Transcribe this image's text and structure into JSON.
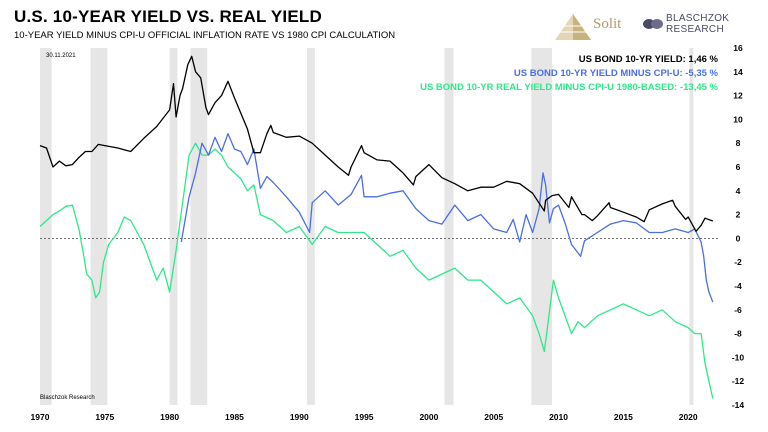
{
  "header": {
    "title": "U.S. 10-YEAR YIELD VS. REAL YIELD",
    "subtitle": "10-YEAR YIELD MINUS CPI-U OFFICIAL INFLATION RATE VS 1980 CPI CALCULATION"
  },
  "brand": {
    "solit": "Solit",
    "line1": "BLASCHZOK",
    "line2": "RESEARCH"
  },
  "chart_data": {
    "type": "line",
    "date_label": "30.11.2021",
    "source": "Blaschzok Research",
    "xlim": [
      1970,
      2022.3
    ],
    "ylim": [
      -14,
      16
    ],
    "x_ticks": [
      "1970",
      "1975",
      "1980",
      "1985",
      "1990",
      "1995",
      "2000",
      "2005",
      "2010",
      "2015",
      "2020"
    ],
    "y_ticks": [
      "16",
      "14",
      "12",
      "10",
      "8",
      "6",
      "4",
      "2",
      "0",
      "-2",
      "-4",
      "-6",
      "-8",
      "-10",
      "-12",
      "-14"
    ],
    "recessions": [
      [
        1970.0,
        1970.9
      ],
      [
        1973.9,
        1975.2
      ],
      [
        1980.0,
        1980.6
      ],
      [
        1981.6,
        1982.9
      ],
      [
        1990.6,
        1991.2
      ],
      [
        2001.2,
        2001.9
      ],
      [
        2007.9,
        2009.5
      ],
      [
        2020.1,
        2020.4
      ]
    ],
    "series": [
      {
        "name": "US BOND 10-YR YIELD",
        "legend": "US BOND 10-YR YIELD: 1,46 %",
        "color": "#000000",
        "x": [
          1970,
          1970.5,
          1971,
          1971.5,
          1972,
          1972.5,
          1973,
          1973.5,
          1974,
          1974.5,
          1975,
          1976,
          1977,
          1978,
          1979,
          1980,
          1980.3,
          1980.5,
          1980.8,
          1981,
          1981.4,
          1981.7,
          1982,
          1982.4,
          1982.8,
          1983,
          1983.5,
          1984,
          1984.5,
          1985,
          1985.5,
          1986,
          1986.5,
          1987,
          1987.5,
          1987.8,
          1988,
          1989,
          1990,
          1991,
          1992,
          1993,
          1993.8,
          1994,
          1994.8,
          1995,
          1996,
          1997,
          1998,
          1998.8,
          1999,
          2000,
          2001,
          2002,
          2003,
          2004,
          2005,
          2006,
          2007,
          2008,
          2008.9,
          2009,
          2009.5,
          2010,
          2010.8,
          2011,
          2011.8,
          2012,
          2012.6,
          2013,
          2013.9,
          2014,
          2015,
          2016,
          2016.6,
          2017,
          2018,
          2018.8,
          2019,
          2019.8,
          2020,
          2020.6,
          2021,
          2021.3,
          2021.9
        ],
        "y": [
          7.8,
          7.6,
          6.0,
          6.5,
          6.1,
          6.2,
          6.8,
          7.3,
          7.3,
          7.9,
          7.8,
          7.6,
          7.3,
          8.4,
          9.4,
          10.8,
          13.0,
          10.2,
          12.0,
          12.6,
          14.6,
          15.3,
          14.0,
          13.5,
          11.0,
          10.4,
          11.4,
          12.0,
          13.2,
          11.8,
          10.5,
          9.2,
          7.2,
          7.2,
          8.8,
          9.5,
          8.9,
          8.5,
          8.6,
          8.0,
          7.0,
          6.0,
          5.3,
          6.0,
          7.8,
          7.2,
          6.6,
          6.5,
          5.5,
          4.5,
          5.2,
          6.2,
          5.1,
          4.6,
          4.0,
          4.3,
          4.3,
          4.8,
          4.6,
          3.8,
          2.3,
          3.2,
          3.6,
          3.7,
          2.6,
          3.5,
          2.0,
          2.0,
          1.5,
          1.9,
          3.0,
          2.6,
          2.2,
          1.8,
          1.4,
          2.4,
          2.9,
          3.2,
          2.7,
          1.6,
          1.8,
          0.6,
          1.1,
          1.7,
          1.46
        ]
      },
      {
        "name": "US BOND 10-YR YIELD MINUS CPI-U",
        "legend": "US BOND 10-YR YIELD MINUS CPI-U: -5,35 %",
        "color": "#4a6fe0",
        "x": [
          1980.9,
          1981.5,
          1982,
          1982.5,
          1983,
          1983.5,
          1984,
          1984.5,
          1985,
          1985.5,
          1986,
          1986.5,
          1987,
          1987.5,
          1988,
          1989,
          1990,
          1990.8,
          1991,
          1992,
          1993,
          1994,
          1994.8,
          1995,
          1996,
          1997,
          1998,
          1999,
          2000,
          2001,
          2002,
          2003,
          2004,
          2005,
          2006,
          2006.5,
          2007,
          2007.5,
          2008,
          2008.5,
          2008.8,
          2009,
          2009.3,
          2009.6,
          2010,
          2010.5,
          2011,
          2011.7,
          2012,
          2013,
          2014,
          2015,
          2016,
          2017,
          2018,
          2019,
          2020,
          2020.5,
          2021,
          2021.2,
          2021.4,
          2021.6,
          2021.9
        ],
        "y": [
          -0.3,
          3.5,
          5.5,
          8.0,
          7.0,
          8.5,
          7.3,
          8.8,
          7.5,
          7.3,
          6.2,
          7.5,
          4.2,
          5.2,
          4.7,
          3.5,
          2.2,
          0.5,
          3.0,
          4.0,
          2.8,
          3.7,
          5.3,
          3.5,
          3.5,
          3.8,
          4.0,
          2.5,
          1.5,
          1.2,
          2.8,
          1.5,
          2.0,
          0.8,
          0.5,
          1.6,
          -0.3,
          2.0,
          0.5,
          2.5,
          5.5,
          4.5,
          1.3,
          2.5,
          2.8,
          1.3,
          -0.5,
          -1.5,
          -0.2,
          0.5,
          1.2,
          1.5,
          1.3,
          0.5,
          0.5,
          0.8,
          0.5,
          0.8,
          -0.3,
          -1.5,
          -3.5,
          -4.5,
          -5.35
        ]
      },
      {
        "name": "US BOND 10-YR REAL YIELD MINUS CPI-U 1980-BASED",
        "legend": "US BOND 10-YR REAL YIELD MINUS CPI-U 1980-BASED: -13,45 %",
        "color": "#2ee88a",
        "x": [
          1970,
          1970.5,
          1971,
          1971.5,
          1972,
          1972.5,
          1973,
          1973.3,
          1973.6,
          1974,
          1974.3,
          1974.6,
          1974.9,
          1975.3,
          1976,
          1976.5,
          1977,
          1977.5,
          1978,
          1978.5,
          1979,
          1979.5,
          1980,
          1980.5,
          1981,
          1981.5,
          1982,
          1982.5,
          1983,
          1983.5,
          1984,
          1984.5,
          1985,
          1985.5,
          1986,
          1986.5,
          1987,
          1988,
          1989,
          1990,
          1991,
          1992,
          1993,
          1994,
          1995,
          1996,
          1997,
          1998,
          1999,
          2000,
          2001,
          2002,
          2003,
          2004,
          2005,
          2006,
          2007,
          2008,
          2008.5,
          2008.9,
          2009.2,
          2009.6,
          2010,
          2011,
          2011.5,
          2012,
          2013,
          2014,
          2015,
          2016,
          2017,
          2018,
          2019,
          2020,
          2020.5,
          2021,
          2021.3,
          2021.6,
          2021.9
        ],
        "y": [
          1.0,
          1.5,
          2.0,
          2.3,
          2.7,
          2.8,
          0.8,
          -1.0,
          -3.0,
          -3.5,
          -5.0,
          -4.5,
          -2.0,
          -0.5,
          0.5,
          1.8,
          1.5,
          0.5,
          -0.5,
          -2.0,
          -3.5,
          -2.5,
          -4.5,
          -1.0,
          3.0,
          7.0,
          8.0,
          7.0,
          7.0,
          7.5,
          7.0,
          6.0,
          5.5,
          5.0,
          4.0,
          4.5,
          2.0,
          1.5,
          0.5,
          1.0,
          -0.5,
          1.0,
          0.5,
          0.5,
          0.5,
          -0.5,
          -1.5,
          -1.0,
          -2.5,
          -3.5,
          -3.0,
          -2.5,
          -3.5,
          -3.5,
          -4.5,
          -5.5,
          -5.0,
          -6.5,
          -8.0,
          -9.5,
          -7.0,
          -3.5,
          -5.0,
          -8.0,
          -7.0,
          -7.5,
          -6.5,
          -6.0,
          -5.5,
          -6.0,
          -6.5,
          -6.0,
          -7.0,
          -7.5,
          -8.0,
          -8.0,
          -10.5,
          -12.0,
          -13.45
        ]
      }
    ]
  }
}
